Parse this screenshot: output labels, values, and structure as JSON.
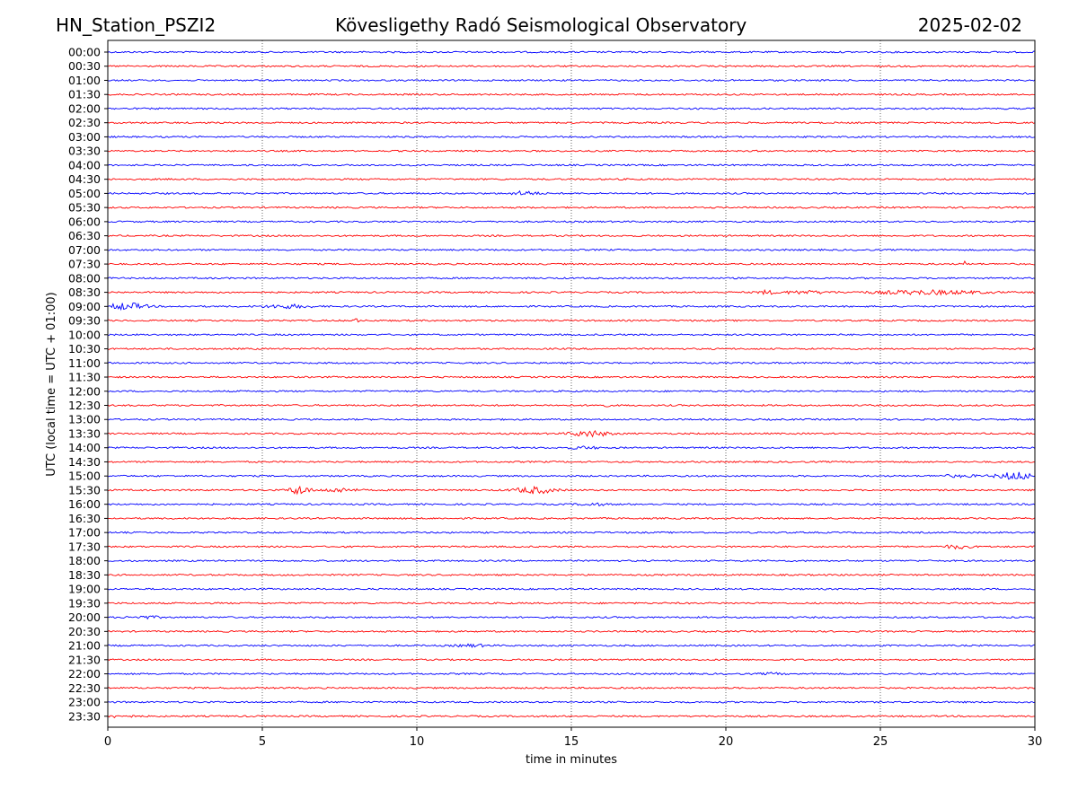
{
  "header": {
    "station": "HN_Station_PSZI2",
    "title": "Kövesligethy Radó Seismological Observatory",
    "date": "2025-02-02"
  },
  "chart_data": {
    "type": "line",
    "title": "Kövesligethy Radó Seismological Observatory",
    "xlabel": "time in minutes",
    "ylabel": "UTC (local time = UTC + 01:00)",
    "xlim": [
      0,
      30
    ],
    "xticks": [
      0,
      5,
      10,
      15,
      20,
      25,
      30
    ],
    "grid": "vertical dotted at each x tick",
    "colors": [
      "#0000ff",
      "#ff0000"
    ],
    "rows": [
      "00:00",
      "00:30",
      "01:00",
      "01:30",
      "02:00",
      "02:30",
      "03:00",
      "03:30",
      "04:00",
      "04:30",
      "05:00",
      "05:30",
      "06:00",
      "06:30",
      "07:00",
      "07:30",
      "08:00",
      "08:30",
      "09:00",
      "09:30",
      "10:00",
      "10:30",
      "11:00",
      "11:30",
      "12:00",
      "12:30",
      "13:00",
      "13:30",
      "14:00",
      "14:30",
      "15:00",
      "15:30",
      "16:00",
      "16:30",
      "17:00",
      "17:30",
      "18:00",
      "18:30",
      "19:00",
      "19:30",
      "20:00",
      "20:30",
      "21:00",
      "21:30",
      "22:00",
      "22:30",
      "23:00",
      "23:30"
    ],
    "events": [
      {
        "row": "05:00",
        "minute": 13.5,
        "amplitude": 2.2,
        "duration": 0.8
      },
      {
        "row": "07:30",
        "minute": 27.7,
        "amplitude": 3.0,
        "duration": 0.15
      },
      {
        "row": "08:30",
        "minute": 21.3,
        "amplitude": 1.8,
        "duration": 0.5
      },
      {
        "row": "08:30",
        "minute": 22.5,
        "amplitude": 1.5,
        "duration": 1.5
      },
      {
        "row": "08:30",
        "minute": 26.5,
        "amplitude": 2.0,
        "duration": 3.5
      },
      {
        "row": "09:00",
        "minute": 0.6,
        "amplitude": 3.5,
        "duration": 1.2
      },
      {
        "row": "09:00",
        "minute": 5.8,
        "amplitude": 1.8,
        "duration": 1.5
      },
      {
        "row": "09:30",
        "minute": 8.0,
        "amplitude": 1.5,
        "duration": 0.3
      },
      {
        "row": "12:30",
        "minute": 16.0,
        "amplitude": 1.5,
        "duration": 0.4
      },
      {
        "row": "13:30",
        "minute": 15.6,
        "amplitude": 3.0,
        "duration": 1.2
      },
      {
        "row": "14:00",
        "minute": 15.4,
        "amplitude": 1.2,
        "duration": 1.0
      },
      {
        "row": "15:00",
        "minute": 29.4,
        "amplitude": 4.0,
        "duration": 1.2
      },
      {
        "row": "15:00",
        "minute": 27.5,
        "amplitude": 1.0,
        "duration": 1.5
      },
      {
        "row": "15:30",
        "minute": 6.2,
        "amplitude": 5.0,
        "duration": 0.6
      },
      {
        "row": "15:30",
        "minute": 7.5,
        "amplitude": 2.0,
        "duration": 1.0
      },
      {
        "row": "15:30",
        "minute": 13.8,
        "amplitude": 3.5,
        "duration": 1.2
      },
      {
        "row": "16:00",
        "minute": 15.7,
        "amplitude": 1.2,
        "duration": 0.8
      },
      {
        "row": "17:30",
        "minute": 27.5,
        "amplitude": 2.0,
        "duration": 0.8
      },
      {
        "row": "20:00",
        "minute": 1.2,
        "amplitude": 1.2,
        "duration": 1.0
      },
      {
        "row": "21:00",
        "minute": 11.8,
        "amplitude": 1.2,
        "duration": 1.0
      },
      {
        "row": "22:00",
        "minute": 21.5,
        "amplitude": 1.0,
        "duration": 0.6
      },
      {
        "row": "23:30",
        "minute": 0.4,
        "amplitude": 1.2,
        "duration": 0.8
      }
    ]
  }
}
